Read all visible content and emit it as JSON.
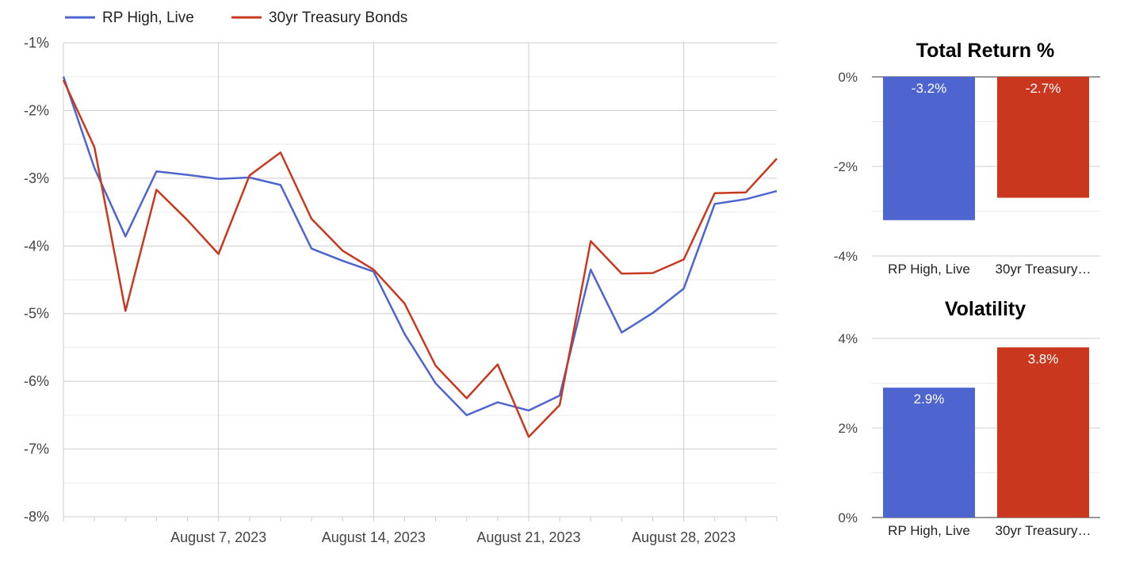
{
  "colors": {
    "series1": "#4e64cf",
    "series2": "#c9381e",
    "grid_major": "#cccccc",
    "grid_minor": "#ebebeb",
    "axis_text": "#444444"
  },
  "chart_data": [
    {
      "type": "line",
      "legend_position": "top-left",
      "grid": true,
      "ylim": [
        -8,
        -1
      ],
      "yticks": [
        -1,
        -2,
        -3,
        -4,
        -5,
        -6,
        -7,
        -8
      ],
      "ytick_labels": [
        "-1%",
        "-2%",
        "-3%",
        "-4%",
        "-5%",
        "-6%",
        "-7%",
        "-8%"
      ],
      "xticks": [
        "August 7, 2023",
        "August 14, 2023",
        "August 21, 2023",
        "August 28, 2023"
      ],
      "x": [
        "2023-07-31",
        "2023-08-01",
        "2023-08-02",
        "2023-08-03",
        "2023-08-04",
        "2023-08-07",
        "2023-08-08",
        "2023-08-09",
        "2023-08-10",
        "2023-08-11",
        "2023-08-14",
        "2023-08-15",
        "2023-08-16",
        "2023-08-17",
        "2023-08-18",
        "2023-08-21",
        "2023-08-22",
        "2023-08-23",
        "2023-08-24",
        "2023-08-25",
        "2023-08-28",
        "2023-08-29",
        "2023-08-30",
        "2023-08-31"
      ],
      "series": [
        {
          "name": "RP High, Live",
          "values": [
            -1.5,
            -2.85,
            -3.86,
            -2.9,
            -2.95,
            -3.01,
            -2.99,
            -3.1,
            -4.04,
            -4.22,
            -4.38,
            -5.3,
            -6.03,
            -6.5,
            -6.31,
            -6.43,
            -6.21,
            -4.35,
            -5.28,
            -4.99,
            -4.63,
            -3.38,
            -3.31,
            -3.19
          ]
        },
        {
          "name": "30yr Treasury Bonds",
          "values": [
            -1.55,
            -2.54,
            -4.96,
            -3.17,
            -3.62,
            -4.12,
            -2.96,
            -2.62,
            -3.6,
            -4.07,
            -4.35,
            -4.85,
            -5.77,
            -6.25,
            -5.75,
            -6.82,
            -6.35,
            -3.93,
            -4.41,
            -4.4,
            -4.2,
            -3.22,
            -3.21,
            -2.71
          ]
        }
      ]
    },
    {
      "type": "bar",
      "title": "Total Return %",
      "categories": [
        "RP High, Live",
        "30yr Treasury…"
      ],
      "values": [
        -3.2,
        -2.7
      ],
      "value_labels": [
        "-3.2%",
        "-2.7%"
      ],
      "ylim": [
        -4,
        0
      ],
      "yticks": [
        0,
        -2,
        -4
      ],
      "ytick_labels": [
        "0%",
        "-2%",
        "-4%"
      ]
    },
    {
      "type": "bar",
      "title": "Volatility",
      "categories": [
        "RP High, Live",
        "30yr Treasury…"
      ],
      "values": [
        2.9,
        3.8
      ],
      "value_labels": [
        "2.9%",
        "3.8%"
      ],
      "ylim": [
        0,
        4
      ],
      "yticks": [
        4,
        2,
        0
      ],
      "ytick_labels": [
        "4%",
        "2%",
        "0%"
      ]
    }
  ]
}
